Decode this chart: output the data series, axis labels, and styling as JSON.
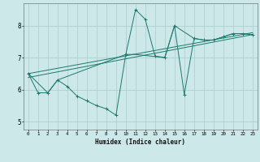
{
  "xlabel": "Humidex (Indice chaleur)",
  "bg_color": "#cce8e8",
  "grid_color": "#aacccc",
  "line_color": "#1a7a6e",
  "xlim": [
    -0.5,
    23.5
  ],
  "ylim": [
    4.75,
    8.7
  ],
  "xticks": [
    0,
    1,
    2,
    3,
    4,
    5,
    6,
    7,
    8,
    9,
    10,
    11,
    12,
    13,
    14,
    15,
    16,
    17,
    18,
    19,
    20,
    21,
    22,
    23
  ],
  "yticks": [
    5,
    6,
    7,
    8
  ],
  "line1_x": [
    0,
    1,
    2,
    3,
    4,
    5,
    6,
    7,
    8,
    9,
    10,
    11,
    12,
    13,
    14,
    15,
    16,
    17,
    18,
    19,
    20,
    21,
    22,
    23
  ],
  "line1_y": [
    6.5,
    5.9,
    5.9,
    6.3,
    6.1,
    5.8,
    5.65,
    5.5,
    5.4,
    5.2,
    7.1,
    8.5,
    8.2,
    7.05,
    7.0,
    8.0,
    5.85,
    7.6,
    7.55,
    7.55,
    7.65,
    7.75,
    7.75,
    7.72
  ],
  "line2_x": [
    0,
    2,
    3,
    10,
    11,
    14,
    15,
    17,
    18,
    19,
    20,
    21,
    22,
    23
  ],
  "line2_y": [
    6.5,
    5.9,
    6.3,
    7.1,
    7.1,
    7.0,
    8.0,
    7.6,
    7.55,
    7.55,
    7.65,
    7.75,
    7.75,
    7.72
  ],
  "line3_x": [
    0,
    23
  ],
  "line3_y": [
    6.38,
    7.72
  ],
  "line4_x": [
    0,
    23
  ],
  "line4_y": [
    6.5,
    7.78
  ]
}
